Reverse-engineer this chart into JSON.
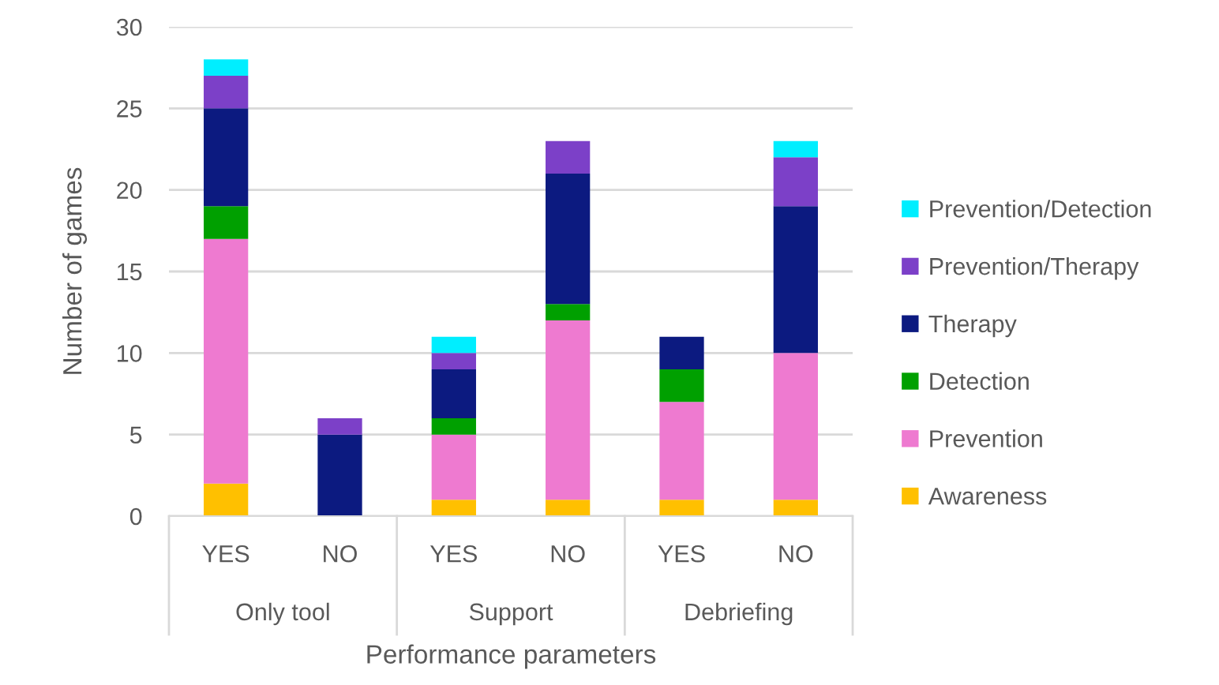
{
  "chart_data": {
    "type": "bar",
    "stacked": true,
    "xlabel": "Performance parameters",
    "ylabel": "Number of games",
    "categories": [
      "YES",
      "NO",
      "YES",
      "NO",
      "YES",
      "NO"
    ],
    "annotations": [
      "Only tool",
      "Support",
      "Debriefing"
    ],
    "series": [
      {
        "name": "Awareness",
        "color": "#ffc000",
        "values": [
          2,
          0,
          1,
          1,
          1,
          1
        ]
      },
      {
        "name": "Prevention",
        "color": "#ee7ad0",
        "values": [
          15,
          0,
          4,
          11,
          6,
          9
        ]
      },
      {
        "name": "Detection",
        "color": "#00a000",
        "values": [
          2,
          0,
          1,
          1,
          2,
          0
        ]
      },
      {
        "name": "Therapy",
        "color": "#0c1a80",
        "values": [
          6,
          5,
          3,
          8,
          2,
          9
        ]
      },
      {
        "name": "Prevention/Therapy",
        "color": "#7c40c8",
        "values": [
          2,
          1,
          1,
          2,
          0,
          3
        ]
      },
      {
        "name": "Prevention/Detection",
        "color": "#00eeff",
        "values": [
          1,
          0,
          1,
          0,
          0,
          1
        ]
      }
    ],
    "ylim": [
      0,
      30
    ],
    "yticks": [
      0,
      5,
      10,
      15,
      20,
      25,
      30
    ],
    "grid": "y",
    "legend": "right"
  }
}
